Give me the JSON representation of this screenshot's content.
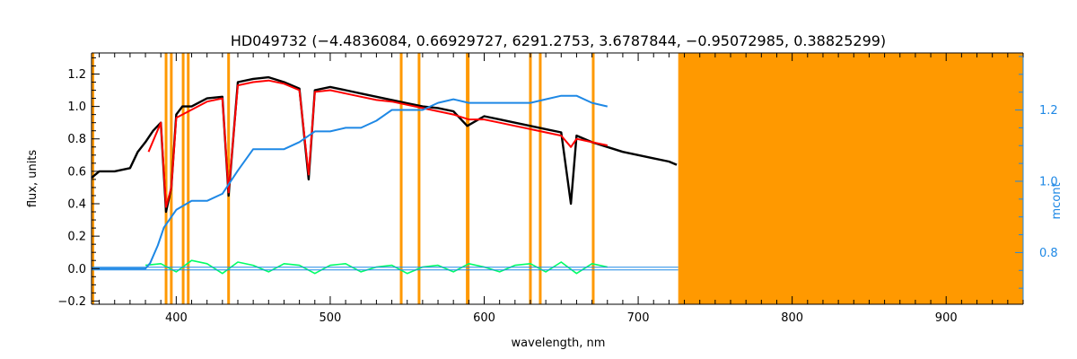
{
  "chart_data": {
    "type": "line",
    "title": "HD049732    (−4.4836084, 0.66929727, 6291.2753, 3.6787844, −0.95072985, 0.38825299)",
    "xlabel": "wavelength, nm",
    "ylabel": "flux, units",
    "y2label": "mcont",
    "xlim": [
      345,
      950
    ],
    "ylim": [
      -0.22,
      1.33
    ],
    "y2lim": [
      0.655,
      1.36
    ],
    "x_ticks": [
      400,
      500,
      600,
      700,
      800,
      900
    ],
    "y_ticks": [
      -0.2,
      0.0,
      0.2,
      0.4,
      0.6,
      0.8,
      1.0,
      1.2
    ],
    "y_tick_labels": [
      "−0.2",
      "0.0",
      "0.2",
      "0.4",
      "0.6",
      "0.8",
      "1.0",
      "1.2"
    ],
    "y2_ticks": [
      0.8,
      1.0,
      1.2
    ],
    "y2_tick_labels": [
      "0.8",
      "1.0",
      "1.2"
    ],
    "grid": false,
    "masked_region": [
      726,
      950
    ],
    "vertical_lines": [
      393.4,
      396.8,
      404.5,
      407.8,
      434.0,
      546.1,
      557.7,
      588.99,
      589.59,
      630.0,
      636.4,
      670.8
    ],
    "series": [
      {
        "role": "observed",
        "color": "#000000",
        "x": [
          345,
          350,
          360,
          370,
          375,
          380,
          385,
          390,
          393.4,
          396.8,
          400,
          404,
          410,
          420,
          430,
          434,
          440,
          450,
          460,
          470,
          480,
          486,
          490,
          500,
          510,
          520,
          530,
          540,
          550,
          560,
          570,
          580,
          589,
          600,
          610,
          620,
          630,
          640,
          650,
          656.3,
          660,
          670,
          680,
          690,
          700,
          710,
          720,
          725
        ],
        "y": [
          0.56,
          0.6,
          0.6,
          0.62,
          0.72,
          0.78,
          0.85,
          0.9,
          0.35,
          0.5,
          0.95,
          1.0,
          1.0,
          1.05,
          1.06,
          0.45,
          1.15,
          1.17,
          1.18,
          1.15,
          1.11,
          0.55,
          1.1,
          1.12,
          1.1,
          1.08,
          1.06,
          1.04,
          1.02,
          1.0,
          0.99,
          0.97,
          0.88,
          0.94,
          0.92,
          0.9,
          0.88,
          0.86,
          0.84,
          0.4,
          0.82,
          0.78,
          0.75,
          0.72,
          0.7,
          0.68,
          0.66,
          0.64
        ]
      },
      {
        "role": "model",
        "color": "#ff0000",
        "x": [
          382,
          390,
          393.4,
          396.8,
          400,
          410,
          420,
          430,
          434,
          440,
          450,
          460,
          470,
          480,
          486,
          490,
          500,
          510,
          520,
          530,
          540,
          550,
          560,
          570,
          580,
          590,
          600,
          610,
          620,
          630,
          640,
          650,
          656.3,
          660,
          670,
          680
        ],
        "y": [
          0.72,
          0.9,
          0.38,
          0.5,
          0.93,
          0.98,
          1.03,
          1.05,
          0.47,
          1.13,
          1.15,
          1.16,
          1.14,
          1.1,
          0.58,
          1.09,
          1.1,
          1.08,
          1.06,
          1.04,
          1.03,
          1.01,
          0.99,
          0.97,
          0.95,
          0.92,
          0.92,
          0.9,
          0.88,
          0.86,
          0.84,
          0.82,
          0.75,
          0.8,
          0.78,
          0.76
        ]
      },
      {
        "role": "residual",
        "color": "#00ff66",
        "x": [
          380,
          390,
          400,
          410,
          420,
          430,
          440,
          450,
          460,
          470,
          480,
          490,
          500,
          510,
          520,
          530,
          540,
          550,
          560,
          570,
          580,
          590,
          600,
          610,
          620,
          630,
          640,
          650,
          660,
          670,
          680
        ],
        "y": [
          0.02,
          0.03,
          -0.02,
          0.05,
          0.03,
          -0.03,
          0.04,
          0.02,
          -0.02,
          0.03,
          0.02,
          -0.03,
          0.02,
          0.03,
          -0.02,
          0.01,
          0.02,
          -0.03,
          0.01,
          0.02,
          -0.02,
          0.03,
          0.01,
          -0.02,
          0.02,
          0.03,
          -0.02,
          0.04,
          -0.03,
          0.03,
          0.01
        ]
      },
      {
        "role": "mcont",
        "axis": "right",
        "color": "#1e88e5",
        "x": [
          345,
          380,
          383,
          388,
          392,
          400,
          410,
          420,
          430,
          440,
          450,
          460,
          470,
          480,
          490,
          500,
          510,
          520,
          530,
          540,
          550,
          560,
          570,
          580,
          590,
          600,
          610,
          620,
          630,
          640,
          650,
          660,
          670,
          680
        ],
        "y": [
          0.755,
          0.755,
          0.77,
          0.82,
          0.87,
          0.92,
          0.945,
          0.945,
          0.965,
          1.03,
          1.09,
          1.09,
          1.09,
          1.11,
          1.14,
          1.14,
          1.15,
          1.15,
          1.17,
          1.2,
          1.2,
          1.2,
          1.22,
          1.23,
          1.22,
          1.22,
          1.22,
          1.22,
          1.22,
          1.23,
          1.24,
          1.24,
          1.22,
          1.21
        ]
      }
    ]
  }
}
